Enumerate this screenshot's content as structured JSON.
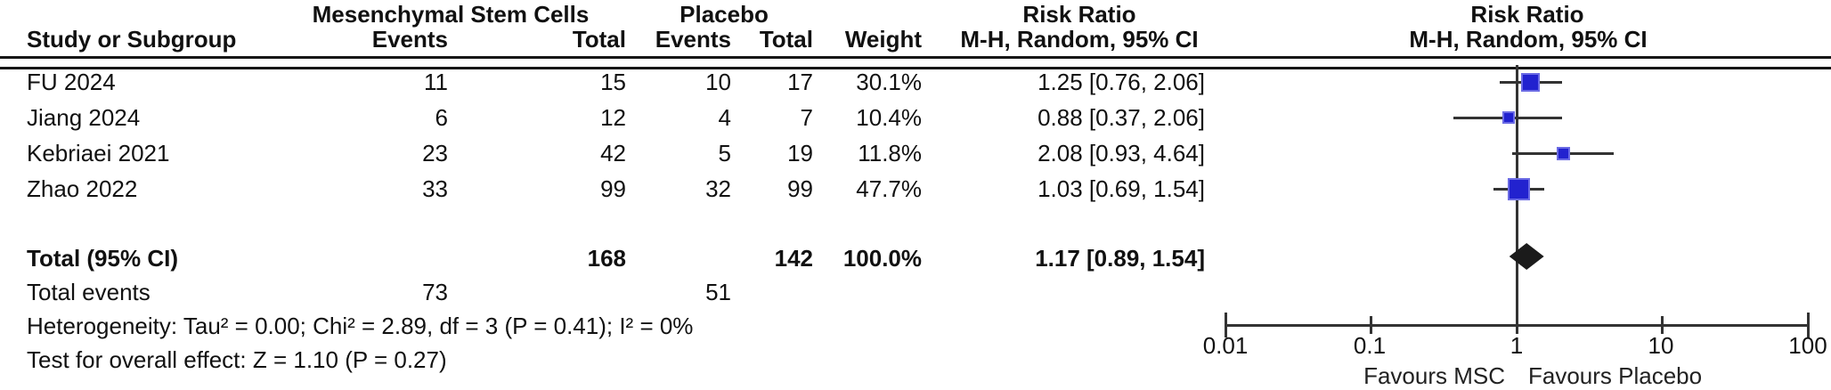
{
  "group_headers": {
    "experimental": "Mesenchymal Stem Cells",
    "control": "Placebo",
    "risk_ratio_left": "Risk Ratio",
    "risk_ratio_right": "Risk Ratio"
  },
  "column_headers": {
    "study": "Study or Subgroup",
    "events_exp": "Events",
    "total_exp": "Total",
    "events_ctl": "Events",
    "total_ctl": "Total",
    "weight": "Weight",
    "method_left": "M-H, Random, 95% CI",
    "method_right": "M-H, Random, 95% CI"
  },
  "rows": [
    {
      "study": "FU 2024",
      "events_exp": "11",
      "total_exp": "15",
      "events_ctl": "10",
      "total_ctl": "17",
      "weight": "30.1%",
      "rr_ci": "1.25 [0.76, 2.06]"
    },
    {
      "study": "Jiang 2024",
      "events_exp": "6",
      "total_exp": "12",
      "events_ctl": "4",
      "total_ctl": "7",
      "weight": "10.4%",
      "rr_ci": "0.88 [0.37, 2.06]"
    },
    {
      "study": "Kebriaei 2021",
      "events_exp": "23",
      "total_exp": "42",
      "events_ctl": "5",
      "total_ctl": "19",
      "weight": "11.8%",
      "rr_ci": "2.08 [0.93, 4.64]"
    },
    {
      "study": "Zhao 2022",
      "events_exp": "33",
      "total_exp": "99",
      "events_ctl": "32",
      "total_ctl": "99",
      "weight": "47.7%",
      "rr_ci": "1.03 [0.69, 1.54]"
    }
  ],
  "totals": {
    "label": "Total (95% CI)",
    "total_exp": "168",
    "total_ctl": "142",
    "weight": "100.0%",
    "rr_ci": "1.17 [0.89, 1.54]"
  },
  "total_events": {
    "label": "Total events",
    "events_exp": "73",
    "events_ctl": "51"
  },
  "footnotes": {
    "heterogeneity": "Heterogeneity: Tau² = 0.00; Chi² = 2.89, df = 3 (P = 0.41); I² = 0%",
    "overall_effect": "Test for overall effect: Z = 1.10 (P = 0.27)"
  },
  "colors": {
    "marker_fill": "#2222cf",
    "marker_border": "#6b6be4",
    "diamond": "#1b1b1b",
    "line": "#333333",
    "text": "#111111"
  },
  "chart_data": {
    "type": "forest",
    "effect_measure": "Risk Ratio, M-H, Random, 95% CI",
    "x_scale": "log10",
    "x_ticks": [
      0.01,
      0.1,
      1,
      10,
      100
    ],
    "axis_tick_labels": [
      "0.01",
      "0.1",
      "1",
      "10",
      "100"
    ],
    "no_effect_value": 1,
    "studies": [
      {
        "name": "FU 2024",
        "rr": 1.25,
        "ci_low": 0.76,
        "ci_high": 2.06,
        "weight_pct": 30.1
      },
      {
        "name": "Jiang 2024",
        "rr": 0.88,
        "ci_low": 0.37,
        "ci_high": 2.06,
        "weight_pct": 10.4
      },
      {
        "name": "Kebriaei 2021",
        "rr": 2.08,
        "ci_low": 0.93,
        "ci_high": 4.64,
        "weight_pct": 11.8
      },
      {
        "name": "Zhao 2022",
        "rr": 1.03,
        "ci_low": 0.69,
        "ci_high": 1.54,
        "weight_pct": 47.7
      }
    ],
    "overall": {
      "label": "Total (95% CI)",
      "rr": 1.17,
      "ci_low": 0.89,
      "ci_high": 1.54
    },
    "favours_left": "Favours MSC",
    "favours_right": "Favours Placebo"
  }
}
